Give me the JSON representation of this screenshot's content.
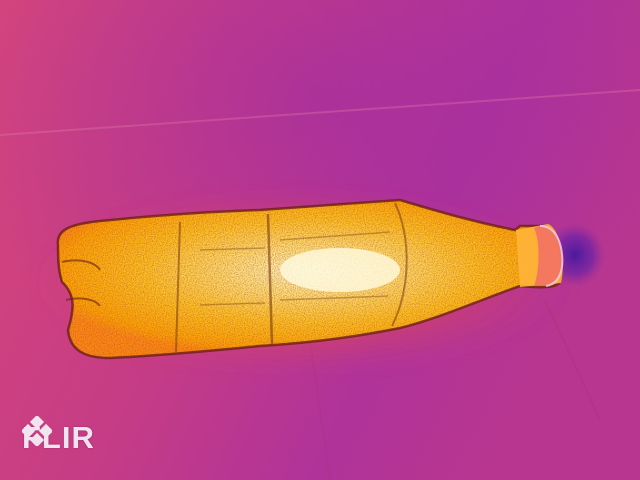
{
  "image": {
    "kind": "thermal-camera-photo",
    "palette": "iron",
    "colors": {
      "background_warm": "#d6467a",
      "background_cool": "#a62f9b",
      "cold_spot": "#4a1a9c",
      "warm_edge": "#ff6a22",
      "hot": "#ffb400",
      "hottest": "#fff6c0",
      "outline": "#5a1a10"
    }
  },
  "watermark": {
    "brand": "FLIR",
    "icon": "flir-diamond-logo-icon",
    "color": "#f1e4ee"
  }
}
